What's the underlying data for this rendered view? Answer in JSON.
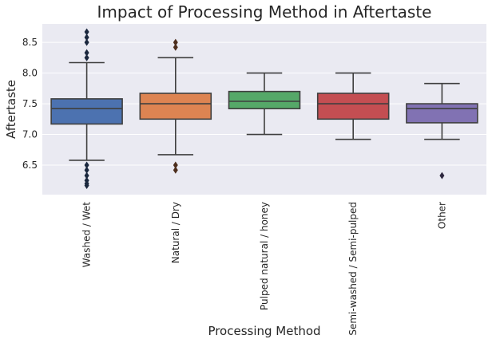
{
  "chart_data": {
    "type": "box",
    "title": "Impact of Processing Method in Aftertaste",
    "xlabel": "Processing Method",
    "ylabel": "Aftertaste",
    "ylim": [
      6.02,
      8.8
    ],
    "yticks": [
      6.5,
      7.0,
      7.5,
      8.0,
      8.5
    ],
    "ytick_labels": [
      "6.5",
      "7.0",
      "7.5",
      "8.0",
      "8.5"
    ],
    "grid": true,
    "categories": [
      "Washed / Wet",
      "Natural / Dry",
      "Pulped natural / honey",
      "Semi-washed / Semi-pulped",
      "Other"
    ],
    "boxes": [
      {
        "category": "Washed / Wet",
        "whisker_low": 6.58,
        "q1": 7.17,
        "median": 7.42,
        "q3": 7.58,
        "whisker_high": 8.17,
        "outliers": [
          6.17,
          6.2,
          6.25,
          6.33,
          6.42,
          6.5,
          8.25,
          8.33,
          8.5,
          8.58,
          8.67
        ],
        "color": "#4c72b0"
      },
      {
        "category": "Natural / Dry",
        "whisker_low": 6.67,
        "q1": 7.25,
        "median": 7.5,
        "q3": 7.67,
        "whisker_high": 8.25,
        "outliers": [
          6.42,
          6.5,
          8.42,
          8.5
        ],
        "color": "#dd8452"
      },
      {
        "category": "Pulped natural / honey",
        "whisker_low": 7.0,
        "q1": 7.42,
        "median": 7.54,
        "q3": 7.7,
        "whisker_high": 8.0,
        "outliers": [],
        "color": "#55a868"
      },
      {
        "category": "Semi-washed / Semi-pulped",
        "whisker_low": 6.92,
        "q1": 7.25,
        "median": 7.5,
        "q3": 7.67,
        "whisker_high": 8.0,
        "outliers": [],
        "color": "#c44e52"
      },
      {
        "category": "Other",
        "whisker_low": 6.92,
        "q1": 7.19,
        "median": 7.42,
        "q3": 7.5,
        "whisker_high": 7.83,
        "outliers": [
          6.33
        ],
        "color": "#8172b3"
      }
    ]
  }
}
